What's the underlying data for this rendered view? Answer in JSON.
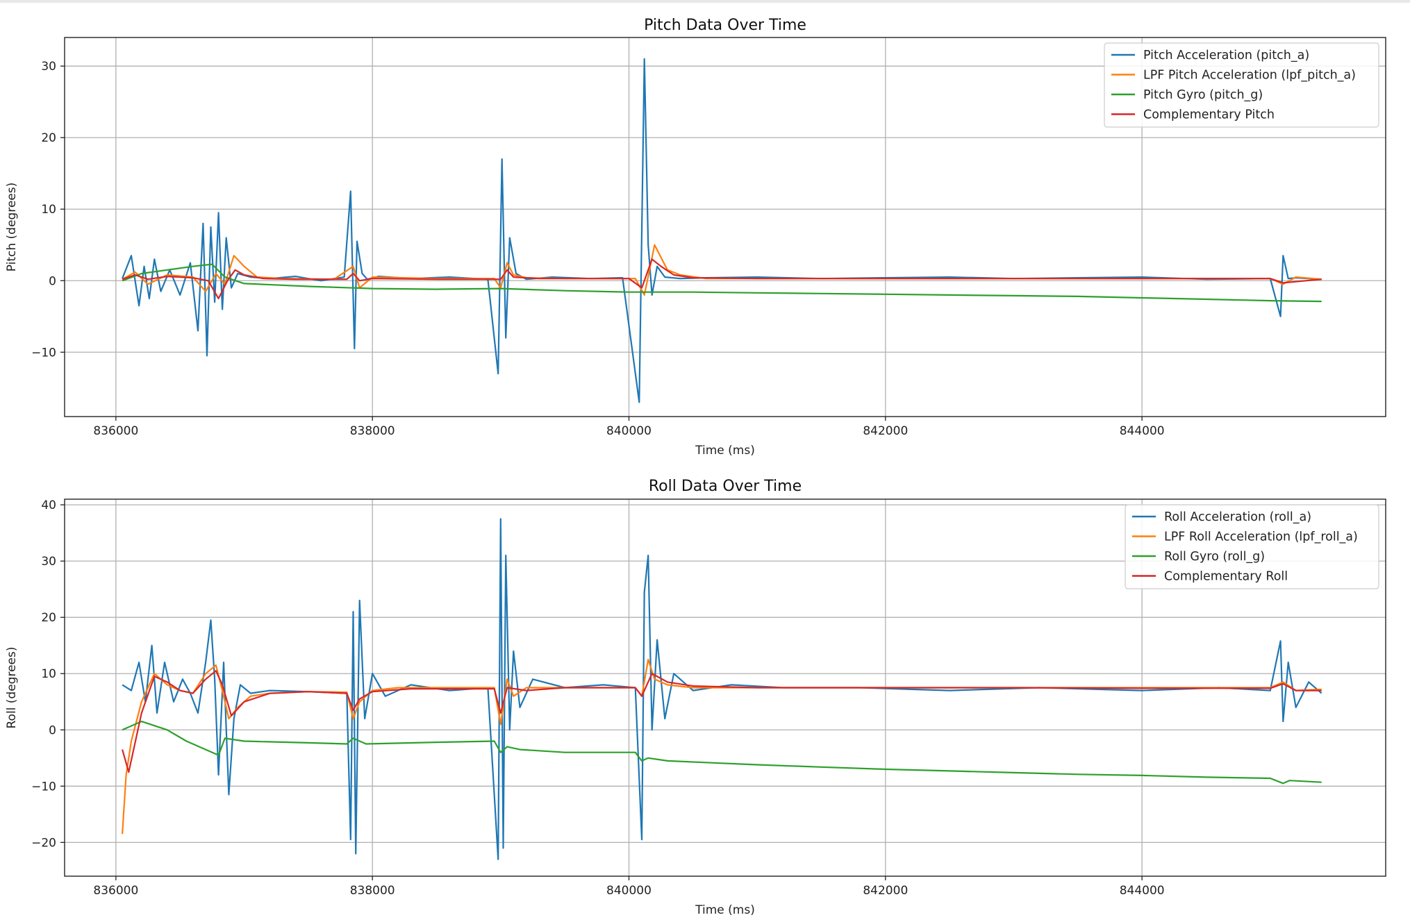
{
  "chart_data": [
    {
      "type": "line",
      "title": "Pitch Data Over Time",
      "xlabel": "Time (ms)",
      "ylabel": "Pitch (degrees)",
      "xlim": [
        835600,
        845900
      ],
      "ylim": [
        -19,
        34
      ],
      "xticks": [
        836000,
        838000,
        840000,
        842000,
        844000
      ],
      "xtick_labels": [
        "836000",
        "838000",
        "840000",
        "842000",
        "844000"
      ],
      "yticks": [
        -10,
        0,
        10,
        20,
        30
      ],
      "ytick_labels": [
        "−10",
        "0",
        "10",
        "20",
        "30"
      ],
      "grid": true,
      "legend_position": "top-right",
      "series": [
        {
          "name": "Pitch Acceleration (pitch_a)",
          "color": "#1f77b4",
          "x": [
            836050,
            836120,
            836180,
            836220,
            836260,
            836300,
            836350,
            836420,
            836500,
            836580,
            836640,
            836680,
            836710,
            836740,
            836770,
            836800,
            836830,
            836860,
            836900,
            836950,
            837050,
            837200,
            837400,
            837600,
            837780,
            837830,
            837860,
            837880,
            837920,
            837960,
            838050,
            838300,
            838600,
            838900,
            838980,
            839010,
            839040,
            839070,
            839120,
            839200,
            839400,
            839700,
            839950,
            840080,
            840120,
            840150,
            840180,
            840220,
            840280,
            840400,
            840600,
            841000,
            841500,
            842000,
            842500,
            843000,
            843500,
            844000,
            844500,
            845000,
            845080,
            845100,
            845140,
            845200,
            845400
          ],
          "y": [
            0.3,
            3.5,
            -3.5,
            2.0,
            -2.5,
            3.0,
            -1.5,
            1.5,
            -2.0,
            2.5,
            -7.0,
            8.0,
            -10.5,
            7.5,
            -3.0,
            9.5,
            -4.0,
            6.0,
            -1.0,
            1.0,
            0.5,
            0.3,
            0.6,
            0.0,
            0.5,
            12.5,
            -9.5,
            5.5,
            1.0,
            0.2,
            0.6,
            0.3,
            0.5,
            0.2,
            -13.0,
            17.0,
            -8.0,
            6.0,
            1.0,
            0.2,
            0.5,
            0.3,
            0.4,
            -17.0,
            31.0,
            5.0,
            -2.0,
            2.0,
            0.5,
            0.3,
            0.4,
            0.5,
            0.3,
            0.4,
            0.5,
            0.3,
            0.4,
            0.5,
            0.2,
            0.3,
            -5.0,
            3.5,
            0.3,
            0.4,
            0.2
          ]
        },
        {
          "name": "LPF Pitch Acceleration (lpf_pitch_a)",
          "color": "#ff7f0e",
          "x": [
            836050,
            836150,
            836250,
            836400,
            836600,
            836700,
            836780,
            836850,
            836920,
            837000,
            837100,
            837300,
            837700,
            837850,
            837900,
            838000,
            838500,
            838950,
            839000,
            839050,
            839100,
            839200,
            839500,
            840050,
            840120,
            840200,
            840300,
            840400,
            840600,
            841000,
            842000,
            843000,
            844000,
            845000,
            845100,
            845200,
            845400
          ],
          "y": [
            0.2,
            1.2,
            -0.5,
            0.8,
            0.5,
            -1.5,
            1.0,
            -0.5,
            3.5,
            2.0,
            0.5,
            0.3,
            0.2,
            2.0,
            -1.0,
            0.5,
            0.3,
            0.3,
            -1.0,
            2.5,
            0.8,
            0.4,
            0.3,
            0.3,
            -2.0,
            5.0,
            1.5,
            0.8,
            0.3,
            0.3,
            0.3,
            0.3,
            0.3,
            0.3,
            -0.5,
            0.5,
            0.2
          ]
        },
        {
          "name": "Pitch Gyro (pitch_g)",
          "color": "#2ca02c",
          "x": [
            836050,
            836200,
            836400,
            836600,
            836750,
            836850,
            837000,
            837500,
            838000,
            838500,
            839000,
            839500,
            840000,
            840500,
            841000,
            841500,
            842000,
            842500,
            843000,
            843500,
            844000,
            844500,
            845000,
            845400
          ],
          "y": [
            0.0,
            1.0,
            1.5,
            2.0,
            2.3,
            0.5,
            -0.4,
            -0.8,
            -1.1,
            -1.2,
            -1.1,
            -1.4,
            -1.6,
            -1.6,
            -1.7,
            -1.8,
            -1.9,
            -2.0,
            -2.1,
            -2.2,
            -2.4,
            -2.6,
            -2.8,
            -2.9
          ]
        },
        {
          "name": "Complementary Pitch",
          "color": "#d62728",
          "x": [
            836050,
            836150,
            836250,
            836400,
            836600,
            836720,
            836800,
            836870,
            836930,
            837000,
            837150,
            837400,
            837800,
            837850,
            837900,
            838000,
            838500,
            839000,
            839050,
            839100,
            839300,
            840000,
            840100,
            840180,
            840250,
            840350,
            840500,
            841000,
            842000,
            843000,
            844000,
            845000,
            845100,
            845400
          ],
          "y": [
            0.2,
            0.8,
            0.2,
            0.6,
            0.4,
            0.0,
            -2.5,
            0.0,
            1.5,
            0.8,
            0.3,
            0.2,
            0.2,
            1.0,
            0.0,
            0.3,
            0.2,
            0.2,
            1.5,
            0.5,
            0.3,
            0.3,
            -1.0,
            3.0,
            2.0,
            0.8,
            0.4,
            0.3,
            0.3,
            0.3,
            0.3,
            0.3,
            -0.3,
            0.2
          ]
        }
      ]
    },
    {
      "type": "line",
      "title": "Roll Data Over Time",
      "xlabel": "Time (ms)",
      "ylabel": "Roll (degrees)",
      "xlim": [
        835600,
        845900
      ],
      "ylim": [
        -26,
        41
      ],
      "xticks": [
        836000,
        838000,
        840000,
        842000,
        844000
      ],
      "xtick_labels": [
        "836000",
        "838000",
        "840000",
        "842000",
        "844000"
      ],
      "yticks": [
        -20,
        -10,
        0,
        10,
        20,
        30,
        40
      ],
      "ytick_labels": [
        "−20",
        "−10",
        "0",
        "10",
        "20",
        "30",
        "40"
      ],
      "grid": true,
      "legend_position": "top-right",
      "series": [
        {
          "name": "Roll Acceleration (roll_a)",
          "color": "#1f77b4",
          "x": [
            836050,
            836120,
            836180,
            836230,
            836280,
            836320,
            836380,
            836450,
            836520,
            836580,
            836640,
            836700,
            836740,
            836770,
            836800,
            836840,
            836880,
            836920,
            836970,
            837050,
            837200,
            837500,
            837800,
            837830,
            837850,
            837870,
            837900,
            837940,
            838000,
            838100,
            838300,
            838600,
            838900,
            838980,
            839000,
            839020,
            839040,
            839070,
            839100,
            839150,
            839250,
            839500,
            839800,
            840050,
            840100,
            840120,
            840150,
            840180,
            840220,
            840280,
            840350,
            840500,
            840800,
            841200,
            841800,
            842500,
            843200,
            844000,
            844600,
            845000,
            845080,
            845100,
            845140,
            845200,
            845300,
            845400
          ],
          "y": [
            8.0,
            7.0,
            12.0,
            5.0,
            15.0,
            3.0,
            12.0,
            5.0,
            9.0,
            6.5,
            3.0,
            12.0,
            19.5,
            9.0,
            -8.0,
            12.0,
            -11.5,
            2.0,
            8.0,
            6.5,
            7.0,
            6.8,
            6.5,
            -19.5,
            21.0,
            -22.0,
            23.0,
            2.0,
            10.0,
            6.0,
            8.0,
            7.0,
            7.5,
            -23.0,
            37.5,
            -21.0,
            31.0,
            0.0,
            14.0,
            4.0,
            9.0,
            7.5,
            8.0,
            7.5,
            -19.5,
            24.5,
            31.0,
            0.0,
            16.0,
            2.0,
            10.0,
            7.0,
            8.0,
            7.5,
            7.5,
            7.0,
            7.5,
            7.0,
            7.5,
            7.0,
            15.8,
            1.5,
            12.0,
            4.0,
            8.5,
            6.5
          ]
        },
        {
          "name": "LPF Roll Acceleration (lpf_roll_a)",
          "color": "#ff7f0e",
          "x": [
            836050,
            836080,
            836120,
            836200,
            836300,
            836400,
            836500,
            836600,
            836700,
            836780,
            836830,
            836880,
            836950,
            837050,
            837200,
            837500,
            837800,
            837850,
            837900,
            838000,
            838200,
            838600,
            838950,
            839000,
            839050,
            839100,
            839200,
            839500,
            840050,
            840100,
            840150,
            840200,
            840300,
            840500,
            841000,
            842000,
            843000,
            844000,
            845000,
            845100,
            845200,
            845400
          ],
          "y": [
            -18.5,
            -8.0,
            -2.0,
            5.0,
            10.0,
            8.0,
            7.0,
            6.5,
            10.0,
            11.5,
            7.0,
            2.0,
            4.0,
            6.0,
            6.5,
            6.8,
            6.7,
            2.0,
            5.0,
            7.0,
            7.5,
            7.5,
            7.5,
            1.0,
            9.0,
            6.0,
            7.5,
            7.5,
            7.5,
            6.0,
            12.5,
            9.0,
            8.0,
            7.5,
            7.5,
            7.5,
            7.5,
            7.5,
            7.5,
            8.5,
            7.0,
            7.2
          ]
        },
        {
          "name": "Roll Gyro (roll_g)",
          "color": "#2ca02c",
          "x": [
            836050,
            836200,
            836400,
            836550,
            836700,
            836800,
            836850,
            837000,
            837500,
            837800,
            837850,
            837950,
            838500,
            838950,
            839000,
            839050,
            839150,
            839500,
            840050,
            840100,
            840150,
            840300,
            840600,
            841000,
            841500,
            842000,
            842500,
            843000,
            843500,
            844000,
            844500,
            845000,
            845100,
            845150,
            845400
          ],
          "y": [
            0.0,
            1.5,
            0.0,
            -2.0,
            -3.5,
            -4.5,
            -1.5,
            -2.0,
            -2.3,
            -2.5,
            -1.5,
            -2.5,
            -2.2,
            -2.0,
            -4.0,
            -3.0,
            -3.5,
            -4.0,
            -4.0,
            -5.5,
            -5.0,
            -5.5,
            -5.8,
            -6.2,
            -6.6,
            -7.0,
            -7.3,
            -7.6,
            -7.9,
            -8.1,
            -8.4,
            -8.6,
            -9.5,
            -9.0,
            -9.3
          ]
        },
        {
          "name": "Complementary Roll",
          "color": "#d62728",
          "x": [
            836050,
            836100,
            836200,
            836300,
            836400,
            836500,
            836600,
            836700,
            836780,
            836830,
            836900,
            837000,
            837200,
            837500,
            837800,
            837850,
            837900,
            838000,
            838300,
            838600,
            838950,
            839000,
            839050,
            839200,
            839500,
            840050,
            840100,
            840180,
            840300,
            840500,
            841000,
            842000,
            843000,
            844000,
            845000,
            845100,
            845200,
            845400
          ],
          "y": [
            -3.5,
            -7.5,
            3.0,
            9.5,
            8.5,
            7.0,
            6.5,
            9.0,
            10.5,
            8.0,
            2.5,
            5.0,
            6.5,
            6.8,
            6.5,
            3.5,
            5.5,
            6.8,
            7.3,
            7.3,
            7.3,
            3.0,
            7.5,
            7.0,
            7.5,
            7.5,
            6.0,
            10.0,
            8.5,
            7.8,
            7.5,
            7.5,
            7.5,
            7.4,
            7.4,
            8.2,
            7.0,
            7.0
          ]
        }
      ]
    }
  ]
}
